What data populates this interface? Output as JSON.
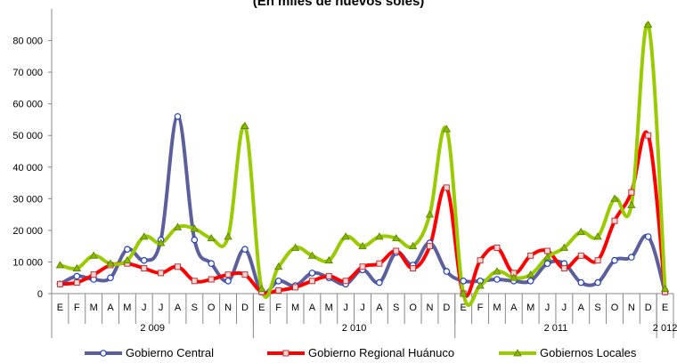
{
  "chart_data": {
    "type": "line",
    "title": "(En miles de nuevos soles)",
    "xlabel": "",
    "ylabel": "",
    "ylim": [
      0,
      90000
    ],
    "yticks": [
      0,
      10000,
      20000,
      30000,
      40000,
      50000,
      60000,
      70000,
      80000
    ],
    "ytick_labels": [
      "0",
      "10 000",
      "20 000",
      "30 000",
      "40 000",
      "50 000",
      "60 000",
      "70 000",
      "80 000"
    ],
    "grid": false,
    "legend_position": "bottom",
    "categories": [
      "E",
      "F",
      "M",
      "A",
      "M",
      "J",
      "J",
      "A",
      "S",
      "O",
      "N",
      "D",
      "E",
      "F",
      "M",
      "A",
      "M",
      "J",
      "J",
      "A",
      "S",
      "O",
      "N",
      "D",
      "E",
      "F",
      "M",
      "A",
      "M",
      "J",
      "J",
      "A",
      "S",
      "O",
      "N",
      "D",
      "E"
    ],
    "year_groups": [
      {
        "label": "2 009",
        "count": 12
      },
      {
        "label": "2 010",
        "count": 12
      },
      {
        "label": "2 011",
        "count": 12
      },
      {
        "label": "2 012",
        "count": 1
      }
    ],
    "series": [
      {
        "name": "Gobierno Central",
        "color": "#5B5F9C",
        "marker": "circle",
        "values": [
          3000,
          5500,
          4500,
          5000,
          14000,
          10500,
          17000,
          56000,
          17000,
          9500,
          4000,
          14000,
          500,
          4000,
          2500,
          6500,
          5000,
          3000,
          7500,
          3500,
          13000,
          9000,
          16000,
          7000,
          4000,
          4000,
          4500,
          4000,
          4000,
          9500,
          9500,
          3500,
          3500,
          10500,
          11500,
          18000,
          500
        ]
      },
      {
        "name": "Gobierno Regional Huánuco",
        "color": "#FF0000",
        "marker": "square",
        "values": [
          3000,
          3500,
          6000,
          9000,
          9500,
          8000,
          6500,
          8500,
          4000,
          4500,
          6000,
          6000,
          500,
          1000,
          2000,
          4000,
          5500,
          4000,
          8500,
          9500,
          13500,
          8000,
          15000,
          33500,
          0,
          10500,
          14500,
          6500,
          12000,
          13500,
          8000,
          12000,
          10500,
          23000,
          32000,
          50000,
          500
        ]
      },
      {
        "name": "Gobiernos Locales",
        "color": "#99CC00",
        "marker": "triangle",
        "values": [
          9000,
          8000,
          12000,
          9500,
          10500,
          18000,
          16000,
          21000,
          20500,
          17500,
          18000,
          53000,
          1500,
          8500,
          14500,
          12000,
          10500,
          18000,
          15000,
          18000,
          17500,
          15000,
          25000,
          52000,
          0,
          2500,
          7000,
          5000,
          6000,
          11500,
          14500,
          19500,
          18000,
          30000,
          28000,
          85000,
          1500
        ]
      }
    ]
  }
}
